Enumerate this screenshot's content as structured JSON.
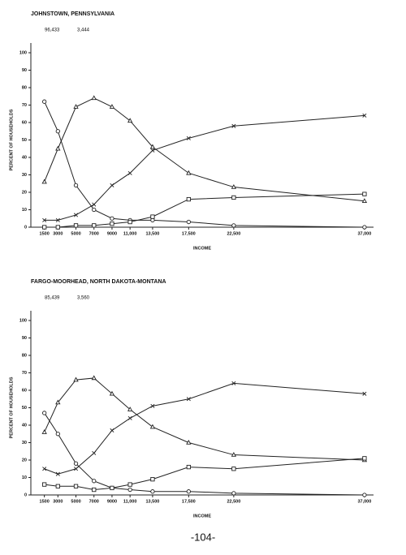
{
  "chart_data": [
    {
      "type": "line",
      "title": "JOHNSTOWN, PENNSYLVANIA",
      "annotations": [
        "96,433",
        "3,444"
      ],
      "x_label": "INCOME",
      "y_label": "PERCENT OF HOUSEHOLDS",
      "x": [
        1500,
        3000,
        5000,
        7000,
        9000,
        11000,
        13500,
        17500,
        22500,
        37000
      ],
      "xlim": [
        0,
        38000
      ],
      "xticks": [
        1500,
        3000,
        5000,
        7000,
        9000,
        {
          "value": 11000,
          "label": "11,000"
        },
        {
          "value": 13500,
          "label": "13,500"
        },
        {
          "value": 17500,
          "label": "17,500"
        },
        {
          "value": 22500,
          "label": "22,500"
        },
        {
          "value": 37000,
          "label": "37,000"
        }
      ],
      "ylim": [
        0,
        100
      ],
      "yticks": [
        0,
        10,
        20,
        30,
        40,
        50,
        60,
        70,
        80,
        90,
        100
      ],
      "series": [
        {
          "marker": "circle",
          "color": "#222",
          "values": [
            72,
            55,
            24,
            10,
            5,
            4,
            4,
            3,
            1,
            0
          ]
        },
        {
          "marker": "triangle",
          "color": "#222",
          "values": [
            26,
            45,
            69,
            74,
            69,
            61,
            46,
            31,
            23,
            15
          ]
        },
        {
          "marker": "x",
          "color": "#222",
          "values": [
            4,
            4,
            7,
            13,
            24,
            31,
            44,
            51,
            58,
            64
          ]
        },
        {
          "marker": "square",
          "color": "#222",
          "values": [
            0,
            0,
            1,
            1,
            2,
            3,
            6,
            16,
            17,
            19
          ]
        }
      ]
    },
    {
      "type": "line",
      "title": "FARGO-MOORHEAD, NORTH DAKOTA-MONTANA",
      "annotations": [
        "85,439",
        "3,560"
      ],
      "x_label": "INCOME",
      "y_label": "PERCENT OF HOUSEHOLDS",
      "x": [
        1500,
        3000,
        5000,
        7000,
        9000,
        11000,
        13500,
        17500,
        22500,
        37000
      ],
      "xlim": [
        0,
        38000
      ],
      "xticks": [
        1500,
        3000,
        5000,
        7000,
        9000,
        {
          "value": 11000,
          "label": "11,000"
        },
        {
          "value": 13500,
          "label": "13,500"
        },
        {
          "value": 17500,
          "label": "17,500"
        },
        {
          "value": 22500,
          "label": "22,500"
        },
        {
          "value": 37000,
          "label": "37,000"
        }
      ],
      "ylim": [
        0,
        100
      ],
      "yticks": [
        0,
        10,
        20,
        30,
        40,
        50,
        60,
        70,
        80,
        90,
        100
      ],
      "series": [
        {
          "marker": "circle",
          "color": "#222",
          "values": [
            47,
            35,
            18,
            8,
            4,
            3,
            2,
            2,
            1,
            0
          ]
        },
        {
          "marker": "triangle",
          "color": "#222",
          "values": [
            36,
            53,
            66,
            67,
            58,
            49,
            39,
            30,
            23,
            20
          ]
        },
        {
          "marker": "x",
          "color": "#222",
          "values": [
            15,
            12,
            15,
            24,
            37,
            44,
            51,
            55,
            64,
            58
          ]
        },
        {
          "marker": "square",
          "color": "#222",
          "values": [
            6,
            5,
            5,
            3,
            4,
            6,
            9,
            16,
            15,
            21
          ]
        }
      ]
    }
  ],
  "page_number": "-104-"
}
